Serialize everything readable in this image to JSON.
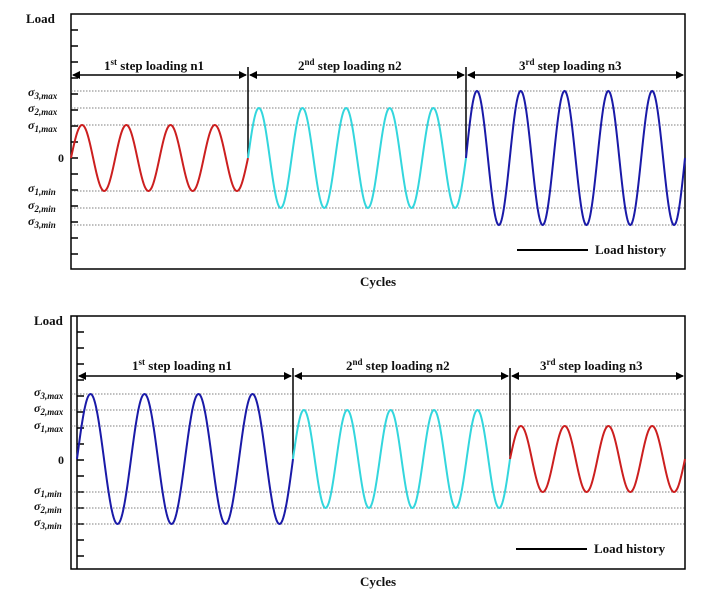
{
  "panels": [
    {
      "y_label": "Load",
      "x_label": "Cycles",
      "zero_label": "0",
      "levels": [
        {
          "sym": "σ",
          "sub": "3,max"
        },
        {
          "sym": "σ",
          "sub": "2,max"
        },
        {
          "sym": "σ",
          "sub": "1,max"
        },
        {
          "sym": "σ",
          "sub": "1,min"
        },
        {
          "sym": "σ",
          "sub": "2,min"
        },
        {
          "sym": "σ",
          "sub": "3,min"
        }
      ],
      "steps": [
        {
          "ord": "1",
          "sup": "st",
          "text": " step loading n1",
          "level": 1,
          "color": "#cc1f1f",
          "cycles": 4
        },
        {
          "ord": "2",
          "sup": "nd",
          "text": " step loading n2",
          "level": 2,
          "color": "#33d6dd",
          "cycles": 5
        },
        {
          "ord": "3",
          "sup": "rd",
          "text": " step loading n3",
          "level": 3,
          "color": "#1a1aa8",
          "cycles": 5
        }
      ],
      "legend": "Load history"
    },
    {
      "y_label": "Load",
      "x_label": "Cycles",
      "zero_label": "0",
      "levels": [
        {
          "sym": "σ",
          "sub": "3,max"
        },
        {
          "sym": "σ",
          "sub": "2,max"
        },
        {
          "sym": "σ",
          "sub": "1,max"
        },
        {
          "sym": "σ",
          "sub": "1,min"
        },
        {
          "sym": "σ",
          "sub": "2,min"
        },
        {
          "sym": "σ",
          "sub": "3,min"
        }
      ],
      "steps": [
        {
          "ord": "1",
          "sup": "st",
          "text": " step loading n1",
          "level": 3,
          "color": "#1a1aa8",
          "cycles": 4
        },
        {
          "ord": "2",
          "sup": "nd",
          "text": " step loading n2",
          "level": 2,
          "color": "#33d6dd",
          "cycles": 5
        },
        {
          "ord": "3",
          "sup": "rd",
          "text": " step loading n3",
          "level": 1,
          "color": "#cc1f1f",
          "cycles": 4
        }
      ],
      "legend": "Load history"
    }
  ]
}
